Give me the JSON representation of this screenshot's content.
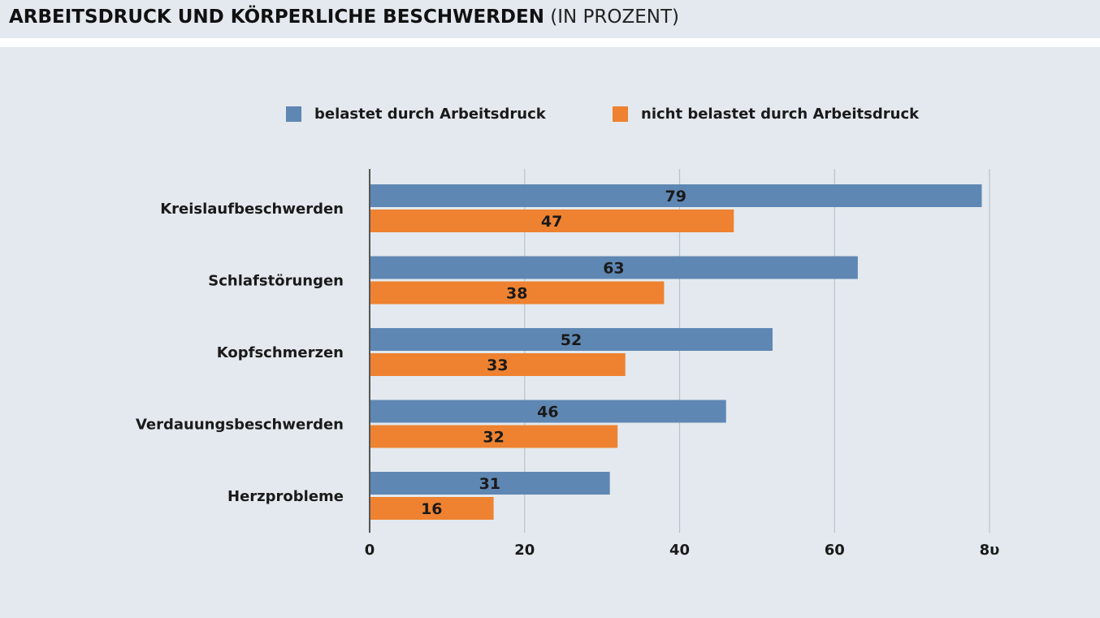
{
  "header": {
    "title_bold": "ARBEITSDRUCK UND KÖRPERLICHE BESCHWERDEN",
    "title_light": "(IN PROZENT)"
  },
  "colors": {
    "series_1": "#5f87b3",
    "series_2": "#ee8230",
    "grid": "#b9c2ca",
    "axis": "#555555",
    "text": "#1a1a1a"
  },
  "chart_data": {
    "type": "bar",
    "orientation": "horizontal",
    "title": "ARBEITSDRUCK UND KÖRPERLICHE BESCHWERDEN (IN PROZENT)",
    "categories": [
      "Kreislaufbeschwerden",
      "Schlafstörungen",
      "Kopfschmerzen",
      "Verdauungsbeschwerden",
      "Herzprobleme"
    ],
    "series": [
      {
        "name": "belastet durch Arbeitsdruck",
        "values": [
          79,
          63,
          52,
          46,
          31
        ]
      },
      {
        "name": "nicht belastet durch Arbeitsdruck",
        "values": [
          47,
          38,
          33,
          32,
          16
        ]
      }
    ],
    "xlim": [
      0,
      80
    ],
    "xticks": [
      "0",
      "20",
      "40",
      "60",
      "8υ"
    ],
    "xtick_values": [
      0,
      20,
      40,
      60,
      80
    ],
    "grid": true,
    "legend_position": "top"
  }
}
